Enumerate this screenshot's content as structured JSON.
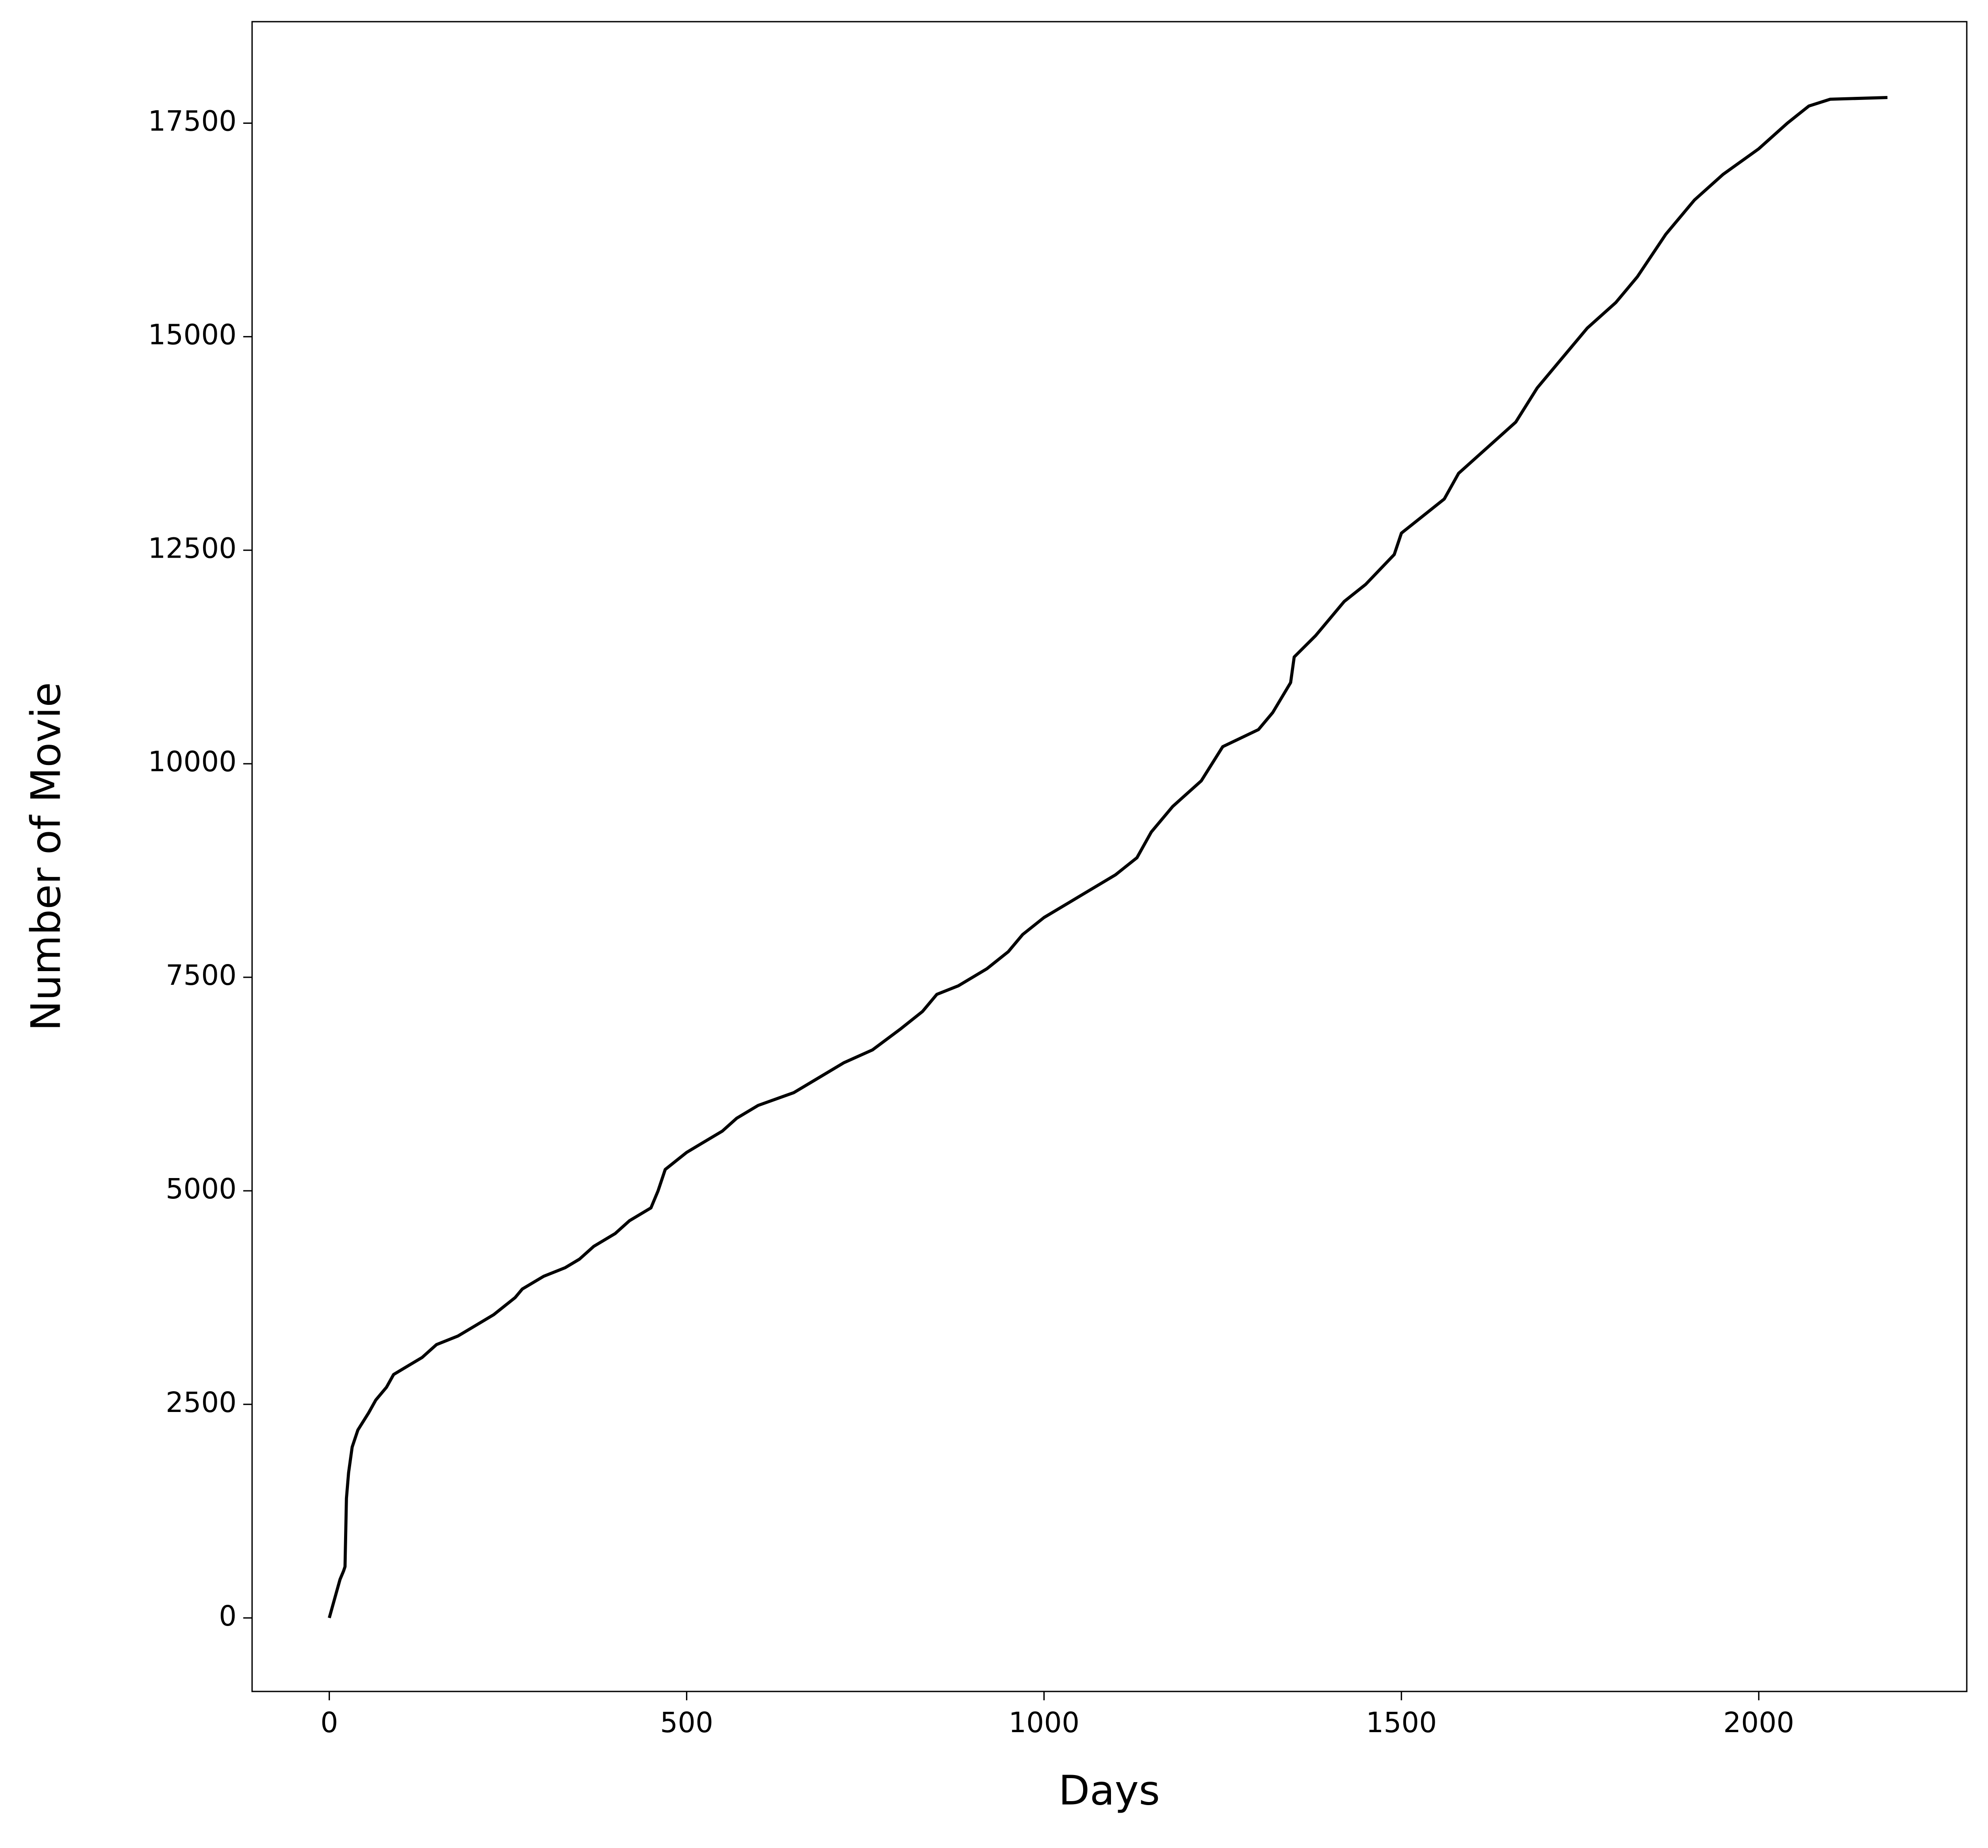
{
  "chart_data": {
    "type": "line",
    "xlabel": "Days",
    "ylabel": "Number of Movie",
    "x": [
      0,
      5,
      10,
      15,
      20,
      22,
      24,
      27,
      32,
      40,
      55,
      65,
      80,
      90,
      110,
      130,
      150,
      180,
      200,
      230,
      260,
      270,
      300,
      330,
      350,
      370,
      400,
      420,
      450,
      460,
      470,
      500,
      520,
      550,
      570,
      600,
      650,
      680,
      720,
      760,
      800,
      830,
      850,
      880,
      920,
      950,
      970,
      1000,
      1050,
      1100,
      1130,
      1150,
      1180,
      1220,
      1250,
      1300,
      1320,
      1345,
      1350,
      1380,
      1420,
      1450,
      1490,
      1500,
      1530,
      1560,
      1580,
      1620,
      1660,
      1690,
      1720,
      1760,
      1800,
      1830,
      1870,
      1910,
      1950,
      2000,
      2040,
      2070,
      2100,
      2180
    ],
    "series": [
      {
        "name": "Number of Movie",
        "color": "#000000",
        "values": [
          0,
          150,
          300,
          450,
          550,
          600,
          1400,
          1700,
          2000,
          2200,
          2400,
          2550,
          2700,
          2850,
          2950,
          3050,
          3200,
          3300,
          3400,
          3550,
          3750,
          3850,
          4000,
          4100,
          4200,
          4350,
          4500,
          4650,
          4800,
          5000,
          5250,
          5450,
          5550,
          5700,
          5850,
          6000,
          6150,
          6300,
          6500,
          6650,
          6900,
          7100,
          7300,
          7400,
          7600,
          7800,
          8000,
          8200,
          8450,
          8700,
          8900,
          9200,
          9500,
          9800,
          10200,
          10400,
          10600,
          10950,
          11250,
          11500,
          11900,
          12100,
          12450,
          12700,
          12900,
          13100,
          13400,
          13700,
          14000,
          14400,
          14700,
          15100,
          15400,
          15700,
          16200,
          16600,
          16900,
          17200,
          17500,
          17700,
          17780,
          17800
        ]
      }
    ],
    "xlim": [
      -108,
      2291
    ],
    "ylim": [
      -861,
      18688
    ],
    "xticks": [
      0,
      500,
      1000,
      1500,
      2000
    ],
    "yticks": [
      0,
      2500,
      5000,
      7500,
      10000,
      12500,
      15000,
      17500
    ]
  }
}
